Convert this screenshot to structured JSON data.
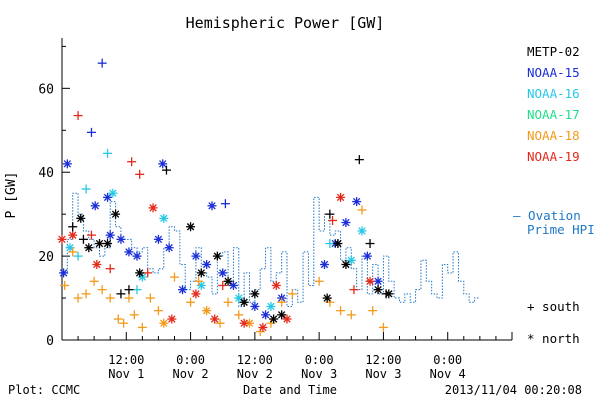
{
  "chart_data": {
    "type": "scatter",
    "title": "Hemispheric Power [GW]",
    "ylabel": "P [GW]",
    "xlabel": "Date and Time",
    "ylim": [
      0,
      72
    ],
    "yticks": [
      0,
      20,
      40,
      60
    ],
    "xlim": [
      0,
      84
    ],
    "xticks": [
      {
        "x": 12,
        "line1": "12:00",
        "line2": "Nov 1"
      },
      {
        "x": 24,
        "line1": "0:00",
        "line2": "Nov 2"
      },
      {
        "x": 36,
        "line1": "12:00",
        "line2": "Nov 2"
      },
      {
        "x": 48,
        "line1": "0:00",
        "line2": "Nov 3"
      },
      {
        "x": 60,
        "line1": "12:00",
        "line2": "Nov 3"
      },
      {
        "x": 72,
        "line1": "0:00",
        "line2": "Nov 4"
      }
    ],
    "footer_left": "Plot: CCMC",
    "footer_right": "2013/11/04 00:20:08",
    "legend": {
      "satellites": [
        {
          "name": "METP-02",
          "color": "#000000"
        },
        {
          "name": "NOAA-15",
          "color": "#1a2fd6"
        },
        {
          "name": "NOAA-16",
          "color": "#27c8e6"
        },
        {
          "name": "NOAA-17",
          "color": "#22dd88"
        },
        {
          "name": "NOAA-18",
          "color": "#f39a1b"
        },
        {
          "name": "NOAA-19",
          "color": "#e32a1a"
        }
      ],
      "ovation_label_1": "— Ovation",
      "ovation_label_2": "Prime HPI",
      "ovation_color": "#1f77c8",
      "south_label": "+ south",
      "north_label": "* north"
    },
    "ovation_series": [
      [
        0,
        16
      ],
      [
        1,
        24
      ],
      [
        2,
        35
      ],
      [
        3,
        30
      ],
      [
        4,
        26
      ],
      [
        5,
        24
      ],
      [
        6,
        22
      ],
      [
        7,
        20
      ],
      [
        8,
        22
      ],
      [
        9,
        33
      ],
      [
        10,
        27
      ],
      [
        11,
        24
      ],
      [
        12,
        24
      ],
      [
        13,
        22
      ],
      [
        14,
        21
      ],
      [
        15,
        22
      ],
      [
        16,
        17
      ],
      [
        17,
        16
      ],
      [
        18,
        17
      ],
      [
        19,
        22
      ],
      [
        20,
        27
      ],
      [
        21,
        26
      ],
      [
        22,
        18
      ],
      [
        23,
        12
      ],
      [
        24,
        14
      ],
      [
        25,
        22
      ],
      [
        26,
        16
      ],
      [
        27,
        15
      ],
      [
        28,
        11
      ],
      [
        29,
        20
      ],
      [
        30,
        21
      ],
      [
        31,
        14
      ],
      [
        32,
        22
      ],
      [
        33,
        8
      ],
      [
        34,
        16
      ],
      [
        35,
        9
      ],
      [
        36,
        12
      ],
      [
        37,
        17
      ],
      [
        38,
        22
      ],
      [
        39,
        14
      ],
      [
        40,
        16
      ],
      [
        41,
        21
      ],
      [
        42,
        8
      ],
      [
        43,
        12
      ],
      [
        44,
        9
      ],
      [
        45,
        21
      ],
      [
        46,
        13
      ],
      [
        47,
        34
      ],
      [
        48,
        26
      ],
      [
        49,
        30
      ],
      [
        50,
        25
      ],
      [
        51,
        26
      ],
      [
        52,
        19
      ],
      [
        53,
        22
      ],
      [
        54,
        17
      ],
      [
        55,
        12
      ],
      [
        56,
        20
      ],
      [
        57,
        11
      ],
      [
        58,
        18
      ],
      [
        59,
        11
      ],
      [
        60,
        20
      ],
      [
        61,
        14
      ],
      [
        62,
        10
      ],
      [
        63,
        9
      ],
      [
        64,
        11
      ],
      [
        65,
        9
      ],
      [
        66,
        12
      ],
      [
        67,
        19
      ],
      [
        68,
        14
      ],
      [
        69,
        11
      ],
      [
        70,
        10
      ],
      [
        71,
        18
      ],
      [
        72,
        16
      ],
      [
        73,
        21
      ],
      [
        74,
        14
      ],
      [
        75,
        11
      ],
      [
        76,
        9
      ],
      [
        77,
        10
      ]
    ],
    "points": [
      {
        "sat": "NOAA-15",
        "hemi": "north",
        "x": 0.3,
        "y": 16
      },
      {
        "sat": "NOAA-15",
        "hemi": "north",
        "x": 1,
        "y": 42
      },
      {
        "sat": "NOAA-15",
        "hemi": "south",
        "x": 7.5,
        "y": 66
      },
      {
        "sat": "NOAA-15",
        "hemi": "south",
        "x": 5.5,
        "y": 49.5
      },
      {
        "sat": "NOAA-15",
        "hemi": "north",
        "x": 6.2,
        "y": 32
      },
      {
        "sat": "NOAA-15",
        "hemi": "north",
        "x": 8.5,
        "y": 34
      },
      {
        "sat": "NOAA-15",
        "hemi": "north",
        "x": 9,
        "y": 25
      },
      {
        "sat": "NOAA-15",
        "hemi": "north",
        "x": 11,
        "y": 24
      },
      {
        "sat": "NOAA-15",
        "hemi": "north",
        "x": 12.5,
        "y": 21
      },
      {
        "sat": "NOAA-15",
        "hemi": "north",
        "x": 14,
        "y": 20
      },
      {
        "sat": "NOAA-15",
        "hemi": "north",
        "x": 18.8,
        "y": 42
      },
      {
        "sat": "NOAA-15",
        "hemi": "north",
        "x": 18,
        "y": 24
      },
      {
        "sat": "NOAA-15",
        "hemi": "north",
        "x": 20,
        "y": 22
      },
      {
        "sat": "NOAA-15",
        "hemi": "north",
        "x": 22.5,
        "y": 12
      },
      {
        "sat": "NOAA-15",
        "hemi": "north",
        "x": 25,
        "y": 20
      },
      {
        "sat": "NOAA-15",
        "hemi": "north",
        "x": 27,
        "y": 18
      },
      {
        "sat": "NOAA-15",
        "hemi": "north",
        "x": 28,
        "y": 32
      },
      {
        "sat": "NOAA-15",
        "hemi": "south",
        "x": 30.5,
        "y": 32.5
      },
      {
        "sat": "NOAA-15",
        "hemi": "north",
        "x": 30,
        "y": 16
      },
      {
        "sat": "NOAA-15",
        "hemi": "north",
        "x": 32,
        "y": 13
      },
      {
        "sat": "NOAA-15",
        "hemi": "north",
        "x": 36,
        "y": 8
      },
      {
        "sat": "NOAA-15",
        "hemi": "north",
        "x": 38,
        "y": 6
      },
      {
        "sat": "NOAA-15",
        "hemi": "north",
        "x": 41,
        "y": 10
      },
      {
        "sat": "NOAA-15",
        "hemi": "north",
        "x": 49,
        "y": 18
      },
      {
        "sat": "NOAA-15",
        "hemi": "north",
        "x": 51,
        "y": 23
      },
      {
        "sat": "NOAA-15",
        "hemi": "north",
        "x": 53,
        "y": 28
      },
      {
        "sat": "NOAA-15",
        "hemi": "north",
        "x": 55,
        "y": 33
      },
      {
        "sat": "NOAA-15",
        "hemi": "north",
        "x": 57,
        "y": 20
      },
      {
        "sat": "NOAA-15",
        "hemi": "north",
        "x": 59,
        "y": 14
      },
      {
        "sat": "NOAA-16",
        "hemi": "north",
        "x": 1.5,
        "y": 22
      },
      {
        "sat": "NOAA-16",
        "hemi": "south",
        "x": 4.5,
        "y": 36
      },
      {
        "sat": "NOAA-16",
        "hemi": "south",
        "x": 8.5,
        "y": 44.5
      },
      {
        "sat": "NOAA-16",
        "hemi": "north",
        "x": 9.5,
        "y": 35
      },
      {
        "sat": "NOAA-16",
        "hemi": "south",
        "x": 3,
        "y": 20
      },
      {
        "sat": "NOAA-16",
        "hemi": "north",
        "x": 15,
        "y": 15
      },
      {
        "sat": "NOAA-16",
        "hemi": "north",
        "x": 19,
        "y": 29
      },
      {
        "sat": "NOAA-16",
        "hemi": "south",
        "x": 14,
        "y": 12
      },
      {
        "sat": "NOAA-16",
        "hemi": "north",
        "x": 26,
        "y": 13
      },
      {
        "sat": "NOAA-16",
        "hemi": "north",
        "x": 33,
        "y": 10
      },
      {
        "sat": "NOAA-16",
        "hemi": "north",
        "x": 39,
        "y": 8
      },
      {
        "sat": "NOAA-16",
        "hemi": "south",
        "x": 50,
        "y": 23
      },
      {
        "sat": "NOAA-16",
        "hemi": "north",
        "x": 54,
        "y": 19
      },
      {
        "sat": "NOAA-16",
        "hemi": "north",
        "x": 56,
        "y": 26
      },
      {
        "sat": "NOAA-18",
        "hemi": "south",
        "x": 0.5,
        "y": 13
      },
      {
        "sat": "NOAA-18",
        "hemi": "south",
        "x": 2,
        "y": 21
      },
      {
        "sat": "NOAA-18",
        "hemi": "south",
        "x": 3,
        "y": 10
      },
      {
        "sat": "NOAA-18",
        "hemi": "south",
        "x": 4.5,
        "y": 11
      },
      {
        "sat": "NOAA-18",
        "hemi": "south",
        "x": 6,
        "y": 14
      },
      {
        "sat": "NOAA-18",
        "hemi": "south",
        "x": 7.5,
        "y": 12
      },
      {
        "sat": "NOAA-18",
        "hemi": "south",
        "x": 9,
        "y": 10
      },
      {
        "sat": "NOAA-18",
        "hemi": "south",
        "x": 10.5,
        "y": 5
      },
      {
        "sat": "NOAA-18",
        "hemi": "south",
        "x": 11.5,
        "y": 4
      },
      {
        "sat": "NOAA-18",
        "hemi": "south",
        "x": 12.5,
        "y": 10
      },
      {
        "sat": "NOAA-18",
        "hemi": "south",
        "x": 13.5,
        "y": 6
      },
      {
        "sat": "NOAA-18",
        "hemi": "south",
        "x": 15,
        "y": 3
      },
      {
        "sat": "NOAA-18",
        "hemi": "south",
        "x": 16.5,
        "y": 10
      },
      {
        "sat": "NOAA-18",
        "hemi": "south",
        "x": 18,
        "y": 7
      },
      {
        "sat": "NOAA-18",
        "hemi": "north",
        "x": 19,
        "y": 4
      },
      {
        "sat": "NOAA-18",
        "hemi": "south",
        "x": 21,
        "y": 15
      },
      {
        "sat": "NOAA-18",
        "hemi": "south",
        "x": 24,
        "y": 9
      },
      {
        "sat": "NOAA-18",
        "hemi": "south",
        "x": 25.5,
        "y": 14
      },
      {
        "sat": "NOAA-18",
        "hemi": "north",
        "x": 27,
        "y": 7
      },
      {
        "sat": "NOAA-18",
        "hemi": "south",
        "x": 29.5,
        "y": 4
      },
      {
        "sat": "NOAA-18",
        "hemi": "south",
        "x": 31,
        "y": 9
      },
      {
        "sat": "NOAA-18",
        "hemi": "south",
        "x": 33,
        "y": 6
      },
      {
        "sat": "NOAA-18",
        "hemi": "north",
        "x": 35,
        "y": 4
      },
      {
        "sat": "NOAA-18",
        "hemi": "south",
        "x": 37,
        "y": 2
      },
      {
        "sat": "NOAA-18",
        "hemi": "south",
        "x": 39,
        "y": 4
      },
      {
        "sat": "NOAA-18",
        "hemi": "south",
        "x": 41,
        "y": 9
      },
      {
        "sat": "NOAA-18",
        "hemi": "south",
        "x": 43,
        "y": 11
      },
      {
        "sat": "NOAA-18",
        "hemi": "south",
        "x": 50,
        "y": 9
      },
      {
        "sat": "NOAA-18",
        "hemi": "south",
        "x": 52,
        "y": 7
      },
      {
        "sat": "NOAA-18",
        "hemi": "south",
        "x": 54,
        "y": 6
      },
      {
        "sat": "NOAA-18",
        "hemi": "south",
        "x": 56,
        "y": 31
      },
      {
        "sat": "NOAA-18",
        "hemi": "south",
        "x": 58,
        "y": 7
      },
      {
        "sat": "NOAA-18",
        "hemi": "south",
        "x": 60,
        "y": 3
      },
      {
        "sat": "NOAA-18",
        "hemi": "south",
        "x": 48,
        "y": 14
      },
      {
        "sat": "NOAA-19",
        "hemi": "north",
        "x": 0,
        "y": 24
      },
      {
        "sat": "NOAA-19",
        "hemi": "north",
        "x": 2,
        "y": 25
      },
      {
        "sat": "NOAA-19",
        "hemi": "south",
        "x": 3,
        "y": 53.5
      },
      {
        "sat": "NOAA-19",
        "hemi": "south",
        "x": 5.5,
        "y": 25
      },
      {
        "sat": "NOAA-19",
        "hemi": "north",
        "x": 6.5,
        "y": 18
      },
      {
        "sat": "NOAA-19",
        "hemi": "south",
        "x": 9,
        "y": 17
      },
      {
        "sat": "NOAA-19",
        "hemi": "south",
        "x": 13,
        "y": 42.5
      },
      {
        "sat": "NOAA-19",
        "hemi": "south",
        "x": 14.5,
        "y": 39.5
      },
      {
        "sat": "NOAA-19",
        "hemi": "north",
        "x": 17,
        "y": 31.5
      },
      {
        "sat": "NOAA-19",
        "hemi": "south",
        "x": 16,
        "y": 16
      },
      {
        "sat": "NOAA-19",
        "hemi": "north",
        "x": 20.5,
        "y": 5
      },
      {
        "sat": "NOAA-19",
        "hemi": "north",
        "x": 25,
        "y": 11
      },
      {
        "sat": "NOAA-19",
        "hemi": "north",
        "x": 28.5,
        "y": 5
      },
      {
        "sat": "NOAA-19",
        "hemi": "south",
        "x": 30,
        "y": 13
      },
      {
        "sat": "NOAA-19",
        "hemi": "north",
        "x": 34,
        "y": 4
      },
      {
        "sat": "NOAA-19",
        "hemi": "north",
        "x": 37.5,
        "y": 3
      },
      {
        "sat": "NOAA-19",
        "hemi": "north",
        "x": 40,
        "y": 13
      },
      {
        "sat": "NOAA-19",
        "hemi": "north",
        "x": 42,
        "y": 5
      },
      {
        "sat": "NOAA-19",
        "hemi": "south",
        "x": 50.5,
        "y": 28.5
      },
      {
        "sat": "NOAA-19",
        "hemi": "north",
        "x": 52,
        "y": 34
      },
      {
        "sat": "NOAA-19",
        "hemi": "south",
        "x": 54.5,
        "y": 12
      },
      {
        "sat": "NOAA-19",
        "hemi": "north",
        "x": 57.5,
        "y": 14
      },
      {
        "sat": "METP-02",
        "hemi": "south",
        "x": 2,
        "y": 27
      },
      {
        "sat": "METP-02",
        "hemi": "north",
        "x": 3.5,
        "y": 29
      },
      {
        "sat": "METP-02",
        "hemi": "south",
        "x": 4,
        "y": 24
      },
      {
        "sat": "METP-02",
        "hemi": "north",
        "x": 5,
        "y": 22
      },
      {
        "sat": "METP-02",
        "hemi": "north",
        "x": 7,
        "y": 23
      },
      {
        "sat": "METP-02",
        "hemi": "north",
        "x": 8.5,
        "y": 23
      },
      {
        "sat": "METP-02",
        "hemi": "north",
        "x": 10,
        "y": 30
      },
      {
        "sat": "METP-02",
        "hemi": "south",
        "x": 11,
        "y": 11
      },
      {
        "sat": "METP-02",
        "hemi": "south",
        "x": 12.5,
        "y": 12
      },
      {
        "sat": "METP-02",
        "hemi": "north",
        "x": 14.5,
        "y": 16
      },
      {
        "sat": "METP-02",
        "hemi": "south",
        "x": 19.5,
        "y": 40.5
      },
      {
        "sat": "METP-02",
        "hemi": "north",
        "x": 24,
        "y": 27
      },
      {
        "sat": "METP-02",
        "hemi": "north",
        "x": 26,
        "y": 16
      },
      {
        "sat": "METP-02",
        "hemi": "north",
        "x": 29,
        "y": 20
      },
      {
        "sat": "METP-02",
        "hemi": "north",
        "x": 31,
        "y": 14
      },
      {
        "sat": "METP-02",
        "hemi": "north",
        "x": 34,
        "y": 9
      },
      {
        "sat": "METP-02",
        "hemi": "north",
        "x": 36,
        "y": 11
      },
      {
        "sat": "METP-02",
        "hemi": "north",
        "x": 39.5,
        "y": 5
      },
      {
        "sat": "METP-02",
        "hemi": "north",
        "x": 41,
        "y": 6
      },
      {
        "sat": "METP-02",
        "hemi": "north",
        "x": 49.5,
        "y": 10
      },
      {
        "sat": "METP-02",
        "hemi": "south",
        "x": 50,
        "y": 30
      },
      {
        "sat": "METP-02",
        "hemi": "north",
        "x": 51.5,
        "y": 23
      },
      {
        "sat": "METP-02",
        "hemi": "north",
        "x": 53,
        "y": 18
      },
      {
        "sat": "METP-02",
        "hemi": "south",
        "x": 55.5,
        "y": 43
      },
      {
        "sat": "METP-02",
        "hemi": "south",
        "x": 57.5,
        "y": 23
      },
      {
        "sat": "METP-02",
        "hemi": "north",
        "x": 59,
        "y": 12
      },
      {
        "sat": "METP-02",
        "hemi": "south",
        "x": 60.5,
        "y": 11
      },
      {
        "sat": "METP-02",
        "hemi": "north",
        "x": 61,
        "y": 11
      }
    ]
  }
}
